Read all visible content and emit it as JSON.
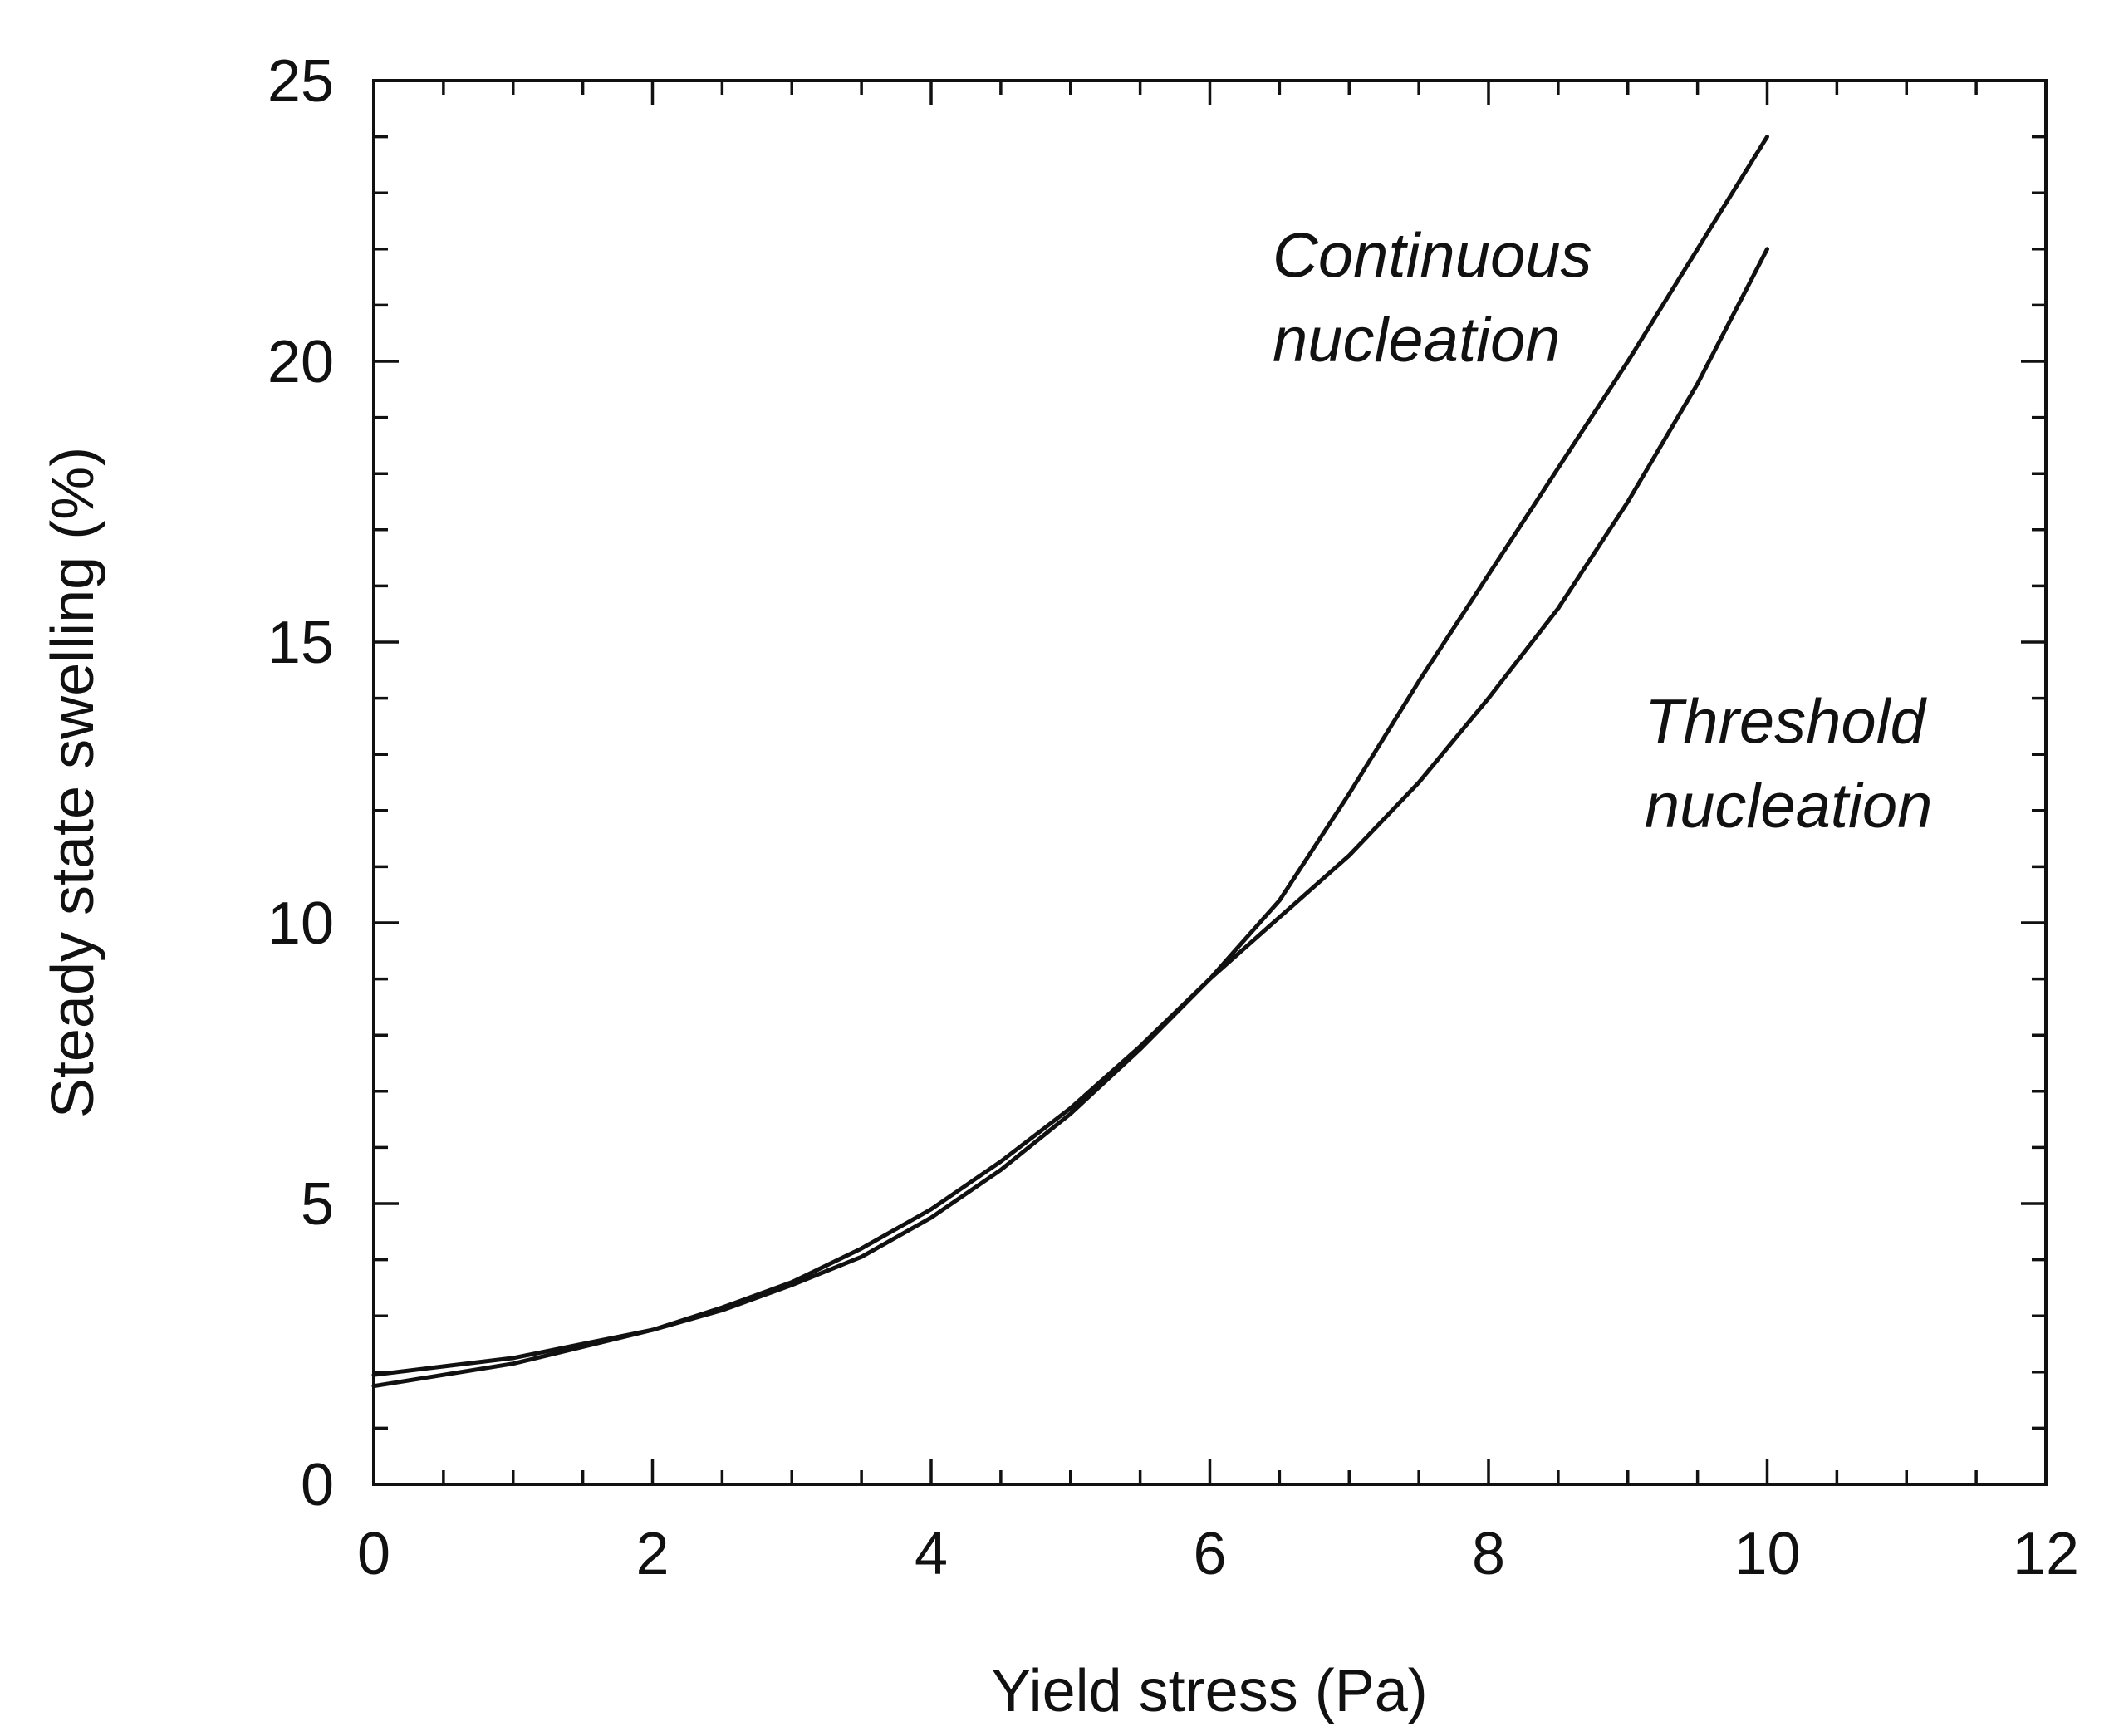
{
  "chart_data": {
    "type": "line",
    "title": "",
    "xlabel": "Yield stress (Pa)",
    "ylabel": "Steady state swelling (%)",
    "xlim": [
      0,
      12
    ],
    "ylim": [
      0,
      25
    ],
    "x_major_ticks": [
      0,
      2,
      4,
      6,
      8,
      10,
      12
    ],
    "x_minor_step": 0.5,
    "y_major_ticks": [
      0,
      5,
      10,
      15,
      20,
      25
    ],
    "y_minor_step": 1,
    "grid": false,
    "colors": {
      "line": "#111111",
      "frame": "#111111",
      "background": "#ffffff"
    },
    "series": [
      {
        "name": "Continuous nucleation",
        "x": [
          0,
          0.5,
          1,
          1.5,
          2,
          2.5,
          3,
          3.5,
          4,
          4.5,
          5,
          5.5,
          6,
          6.5,
          7,
          7.5,
          8,
          8.5,
          9,
          9.5,
          10
        ],
        "y": [
          1.75,
          1.95,
          2.15,
          2.45,
          2.75,
          3.15,
          3.6,
          4.2,
          4.9,
          5.75,
          6.7,
          7.8,
          9.0,
          10.4,
          12.3,
          14.3,
          16.2,
          18.1,
          20.0,
          22.0,
          24.0
        ]
      },
      {
        "name": "Threshold nucleation",
        "x": [
          0,
          0.5,
          1,
          1.5,
          2,
          2.5,
          3,
          3.5,
          4,
          4.5,
          5,
          5.5,
          6,
          6.5,
          7,
          7.5,
          8,
          8.5,
          9,
          9.5,
          10
        ],
        "y": [
          1.95,
          2.1,
          2.25,
          2.5,
          2.75,
          3.1,
          3.55,
          4.05,
          4.75,
          5.6,
          6.6,
          7.75,
          9.0,
          10.1,
          11.2,
          12.5,
          14.0,
          15.6,
          17.5,
          19.6,
          22.0
        ]
      }
    ],
    "annotations": [
      {
        "series": "Continuous nucleation",
        "lines": [
          "Continuous",
          "nucleation"
        ],
        "at_x": 6.45,
        "at_y": [
          21.5,
          20.0
        ]
      },
      {
        "series": "Threshold nucleation",
        "lines": [
          "Threshold",
          "nucleation"
        ],
        "at_x": 9.12,
        "at_y": [
          13.2,
          11.7
        ]
      }
    ]
  }
}
